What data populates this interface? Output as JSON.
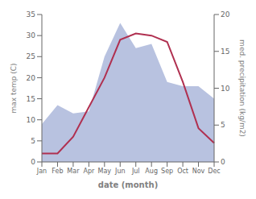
{
  "chart_data": {
    "type": "line",
    "categories": [
      "Jan",
      "Feb",
      "Mar",
      "Apr",
      "May",
      "Jun",
      "Jul",
      "Aug",
      "Sep",
      "Oct",
      "Nov",
      "Dec"
    ],
    "series": [
      {
        "type": "area",
        "color": "#b8c2e0",
        "values": [
          9,
          13.5,
          11.5,
          12,
          25,
          33,
          27,
          28,
          19,
          18,
          18,
          15
        ]
      },
      {
        "type": "line",
        "color": "#b03050",
        "values": [
          2,
          2,
          6,
          13,
          20,
          29,
          30.5,
          30,
          28.5,
          19,
          8,
          4.5
        ]
      }
    ],
    "xlabel": "date (month)",
    "ylabel": "max temp (C)",
    "y2label": "med. precipitation (kg/m2)",
    "ylim": [
      0,
      35
    ],
    "yticks": [
      0,
      5,
      10,
      15,
      20,
      25,
      30,
      35
    ],
    "y2lim": [
      0,
      20
    ],
    "y2ticks": [
      0,
      5,
      10,
      15,
      20
    ],
    "grid": false
  }
}
